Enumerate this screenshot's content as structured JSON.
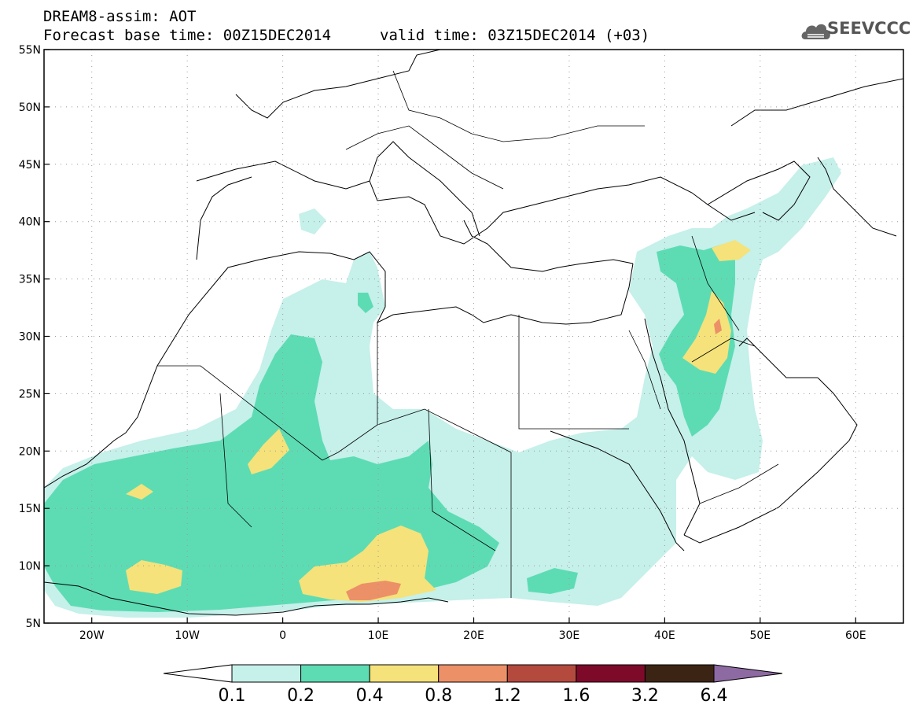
{
  "title": {
    "line1": "DREAM8-assim: AOT",
    "base_time": "Forecast base time: 00Z15DEC2014",
    "valid_time": "valid time: 03Z15DEC2014 (+03)"
  },
  "logo": {
    "text": "SEEVCCC",
    "icon": "cloud-icon"
  },
  "map": {
    "lon_range": [
      -25,
      65
    ],
    "lat_range": [
      5,
      55
    ],
    "lat_ticks": [
      {
        "value": 55,
        "label": "55N"
      },
      {
        "value": 50,
        "label": "50N"
      },
      {
        "value": 45,
        "label": "45N"
      },
      {
        "value": 40,
        "label": "40N"
      },
      {
        "value": 35,
        "label": "35N"
      },
      {
        "value": 30,
        "label": "30N"
      },
      {
        "value": 25,
        "label": "25N"
      },
      {
        "value": 20,
        "label": "20N"
      },
      {
        "value": 15,
        "label": "15N"
      },
      {
        "value": 10,
        "label": "10N"
      },
      {
        "value": 5,
        "label": "5N"
      }
    ],
    "lon_ticks": [
      {
        "value": -20,
        "label": "20W"
      },
      {
        "value": -10,
        "label": "10W"
      },
      {
        "value": 0,
        "label": "0"
      },
      {
        "value": 10,
        "label": "10E"
      },
      {
        "value": 20,
        "label": "20E"
      },
      {
        "value": 30,
        "label": "30E"
      },
      {
        "value": 40,
        "label": "40E"
      },
      {
        "value": 50,
        "label": "50E"
      },
      {
        "value": 60,
        "label": "60E"
      }
    ],
    "grid": true
  },
  "colorbar": {
    "labels": [
      "0.1",
      "0.2",
      "0.4",
      "0.8",
      "1.2",
      "1.6",
      "3.2",
      "6.4"
    ],
    "colors": [
      "#ffffff",
      "#c6f0ea",
      "#5ddcb4",
      "#f5e27a",
      "#ec9068",
      "#b44a3e",
      "#7e0a2a",
      "#3c2414",
      "#8e6aa2"
    ]
  }
}
